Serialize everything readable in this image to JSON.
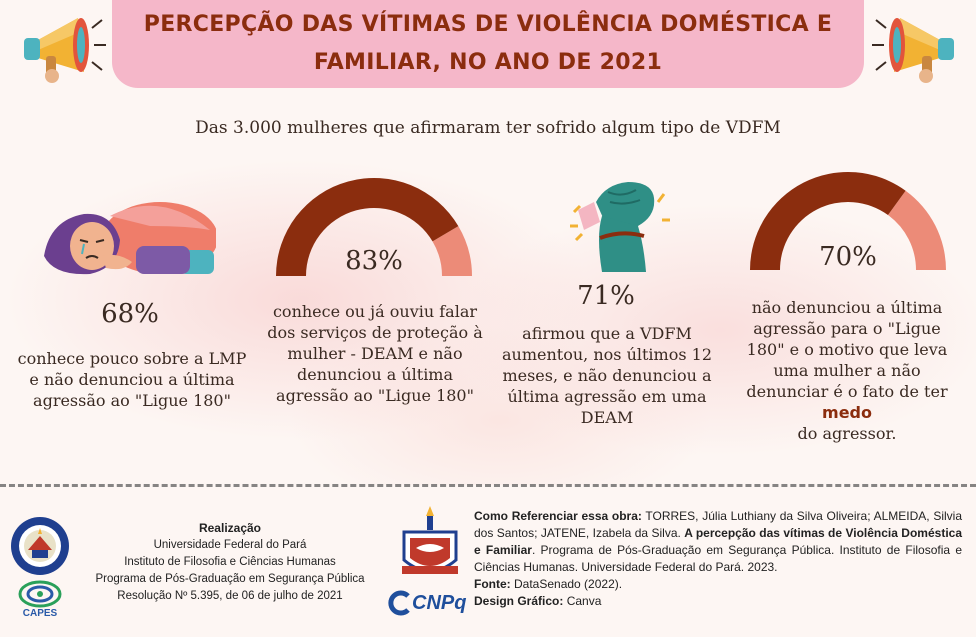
{
  "title": "PERCEPÇÃO DAS VÍTIMAS DE VIOLÊNCIA DOMÉSTICA E FAMILIAR, NO ANO DE 2021",
  "subtitle": "Das 3.000 mulheres que afirmaram ter sofrido algum tipo de VDFM",
  "stats": [
    {
      "percent_label": "68%",
      "value": 68,
      "text": "conhece pouco sobre a LMP e não denunciou a última agressão ao \"Ligue 180\""
    },
    {
      "percent_label": "83%",
      "value": 83,
      "text": "conhece ou já ouviu falar dos serviços de proteção à mulher - DEAM e não denunciou a última agressão ao \"Ligue 180\""
    },
    {
      "percent_label": "71%",
      "value": 71,
      "text": "afirmou que a VDFM aumentou, nos últimos 12 meses, e não denunciou a última agressão em uma DEAM"
    },
    {
      "percent_label": "70%",
      "value": 70,
      "text_before": "não denunciou a última agressão para o \"Ligue 180\" e o motivo que leva uma mulher a não denunciar é o fato de ter",
      "highlight": "medo",
      "text_after": "do agressor."
    }
  ],
  "colors": {
    "gauge_filled": "#8b2d0e",
    "gauge_rest": "#ec8b78",
    "title_bg": "#f5b7c9",
    "title_text": "#8b2d0e"
  },
  "icons": [
    "megaphone-icon",
    "crying-woman-illustration",
    "raised-fist-illustration"
  ],
  "footer": {
    "realizacao_head": "Realização",
    "realizacao_lines": [
      "Universidade Federal do Pará",
      "Instituto de Filosofia e Ciências Humanas",
      "Programa de Pós-Graduação em Segurança Pública",
      "Resolução Nº 5.395, de 06 de julho de 2021"
    ],
    "capes_label": "CAPES",
    "cnpq_label": "CNPq",
    "ref_label": "Como Referenciar essa obra:",
    "ref_authors": " TORRES, Júlia Luthiany da Silva Oliveira; ALMEIDA, Silvia dos Santos; JATENE, Izabela da Silva. ",
    "ref_title": "A percepção das vítimas de Violência Doméstica e Familiar",
    "ref_rest": ". Programa de Pós-Graduação em Segurança Pública. Instituto de Filosofia e Ciências Humanas. Universidade Federal do Pará. 2023.",
    "fonte_label": "Fonte:",
    "fonte_value": " DataSenado (2022).",
    "design_label": "Design Gráfico:",
    "design_value": " Canva"
  }
}
